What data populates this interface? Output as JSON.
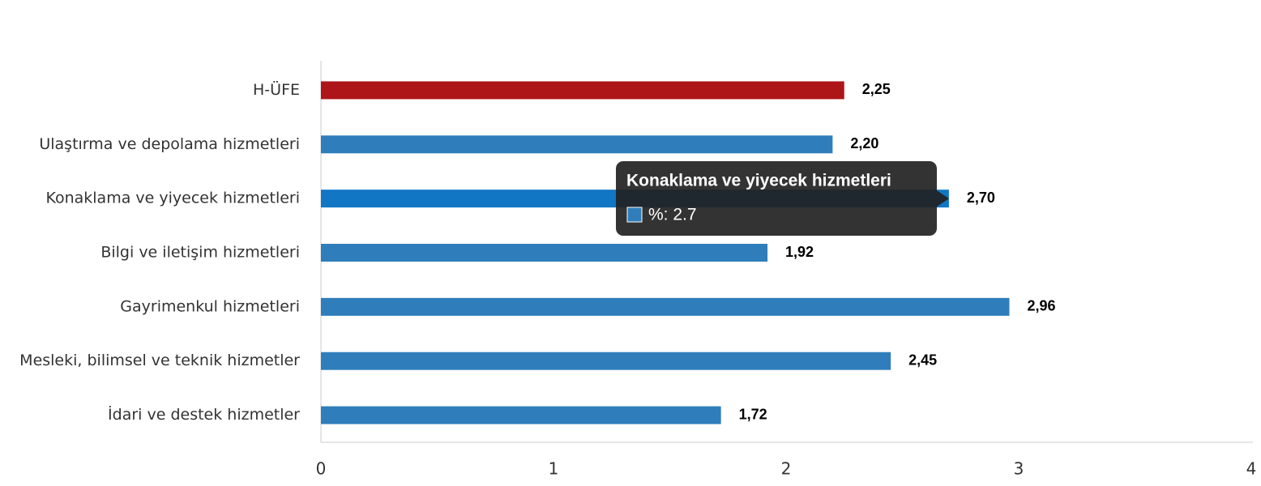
{
  "chart_data": {
    "type": "bar",
    "orientation": "horizontal",
    "categories": [
      "H-ÜFE",
      "Ulaştırma ve depolama hizmetleri",
      "Konaklama ve yiyecek hizmetleri",
      "Bilgi ve iletişim hizmetleri",
      "Gayrimenkul hizmetleri",
      "Mesleki, bilimsel ve teknik hizmetler",
      "İdari ve destek hizmetler"
    ],
    "series": [
      {
        "name": "%",
        "colors": [
          "#ad1519",
          "#2f7ebb",
          "#1177c4",
          "#2f7ebb",
          "#2f7ebb",
          "#2f7ebb",
          "#2f7ebb"
        ],
        "values": [
          2.25,
          2.2,
          2.7,
          1.92,
          2.96,
          2.45,
          1.72
        ],
        "value_labels": [
          "2,25",
          "2,20",
          "2,70",
          "1,92",
          "2,96",
          "2,45",
          "1,72"
        ]
      }
    ],
    "xlim": [
      0,
      4
    ],
    "xticks": [
      0,
      1,
      2,
      3,
      4
    ],
    "grid": false,
    "tooltip": {
      "index": 2,
      "text": "%: 2.7"
    }
  }
}
